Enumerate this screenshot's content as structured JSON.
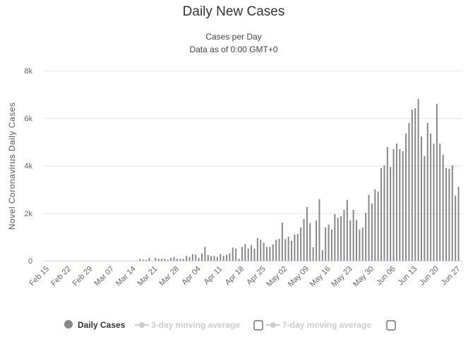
{
  "chart_data": {
    "type": "bar",
    "title": "Daily New Cases",
    "subtitle": "Cases per Day",
    "subtitle2": "Data as of 0:00 GMT+0",
    "xlabel": "",
    "ylabel": "Novel Coronavirus Daily Cases",
    "ylim": [
      0,
      8000
    ],
    "yticks": [
      {
        "v": 0,
        "label": "0"
      },
      {
        "v": 2000,
        "label": "2k"
      },
      {
        "v": 4000,
        "label": "4k"
      },
      {
        "v": 6000,
        "label": "6k"
      },
      {
        "v": 8000,
        "label": "8k"
      }
    ],
    "start_date": "Feb 15",
    "end_date": "Jun 27",
    "xtick_labels": [
      "Feb 15",
      "Feb 22",
      "Feb 29",
      "Mar 07",
      "Mar 14",
      "Mar 21",
      "Mar 28",
      "Apr 04",
      "Apr 11",
      "Apr 18",
      "Apr 25",
      "May 02",
      "May 09",
      "May 16",
      "May 23",
      "May 30",
      "Jun 06",
      "Jun 13",
      "Jun 20",
      "Jun 27"
    ],
    "grid": true,
    "series": [
      {
        "name": "Daily Cases",
        "color": "#888888",
        "values": [
          0,
          0,
          0,
          0,
          0,
          0,
          0,
          0,
          0,
          0,
          0,
          0,
          0,
          0,
          0,
          0,
          0,
          0,
          0,
          0,
          0,
          0,
          0,
          0,
          0,
          0,
          0,
          0,
          0,
          0,
          80,
          40,
          40,
          120,
          0,
          120,
          80,
          80,
          80,
          40,
          120,
          160,
          80,
          80,
          80,
          200,
          160,
          280,
          250,
          120,
          310,
          580,
          240,
          200,
          200,
          160,
          280,
          200,
          250,
          310,
          550,
          510,
          80,
          580,
          700,
          510,
          660,
          510,
          960,
          880,
          760,
          580,
          580,
          690,
          880,
          920,
          1600,
          913,
          1010,
          830,
          1100,
          1130,
          1400,
          1750,
          2260,
          1580,
          565,
          1700,
          2590,
          446,
          1400,
          1520,
          1310,
          1960,
          1810,
          1870,
          2140,
          2560,
          1700,
          2140,
          1720,
          1310,
          1400,
          2020,
          2770,
          2410,
          3000,
          2910,
          3900,
          4010,
          4790,
          3950,
          4700,
          4930,
          4700,
          4610,
          5350,
          5800,
          6360,
          6420,
          6810,
          5230,
          4400,
          5800,
          5350,
          4930,
          6600,
          4930,
          4460,
          3900,
          3870,
          4010,
          2740,
          3120
        ]
      }
    ],
    "legend": {
      "placement": "bottom",
      "items": [
        {
          "label": "Daily Cases",
          "color": "#888888",
          "active": true
        },
        {
          "label": "3-day moving average",
          "color": "#cccccc",
          "active": false
        },
        {
          "label": "7-day moving average",
          "color": "#cccccc",
          "active": false
        }
      ]
    }
  }
}
